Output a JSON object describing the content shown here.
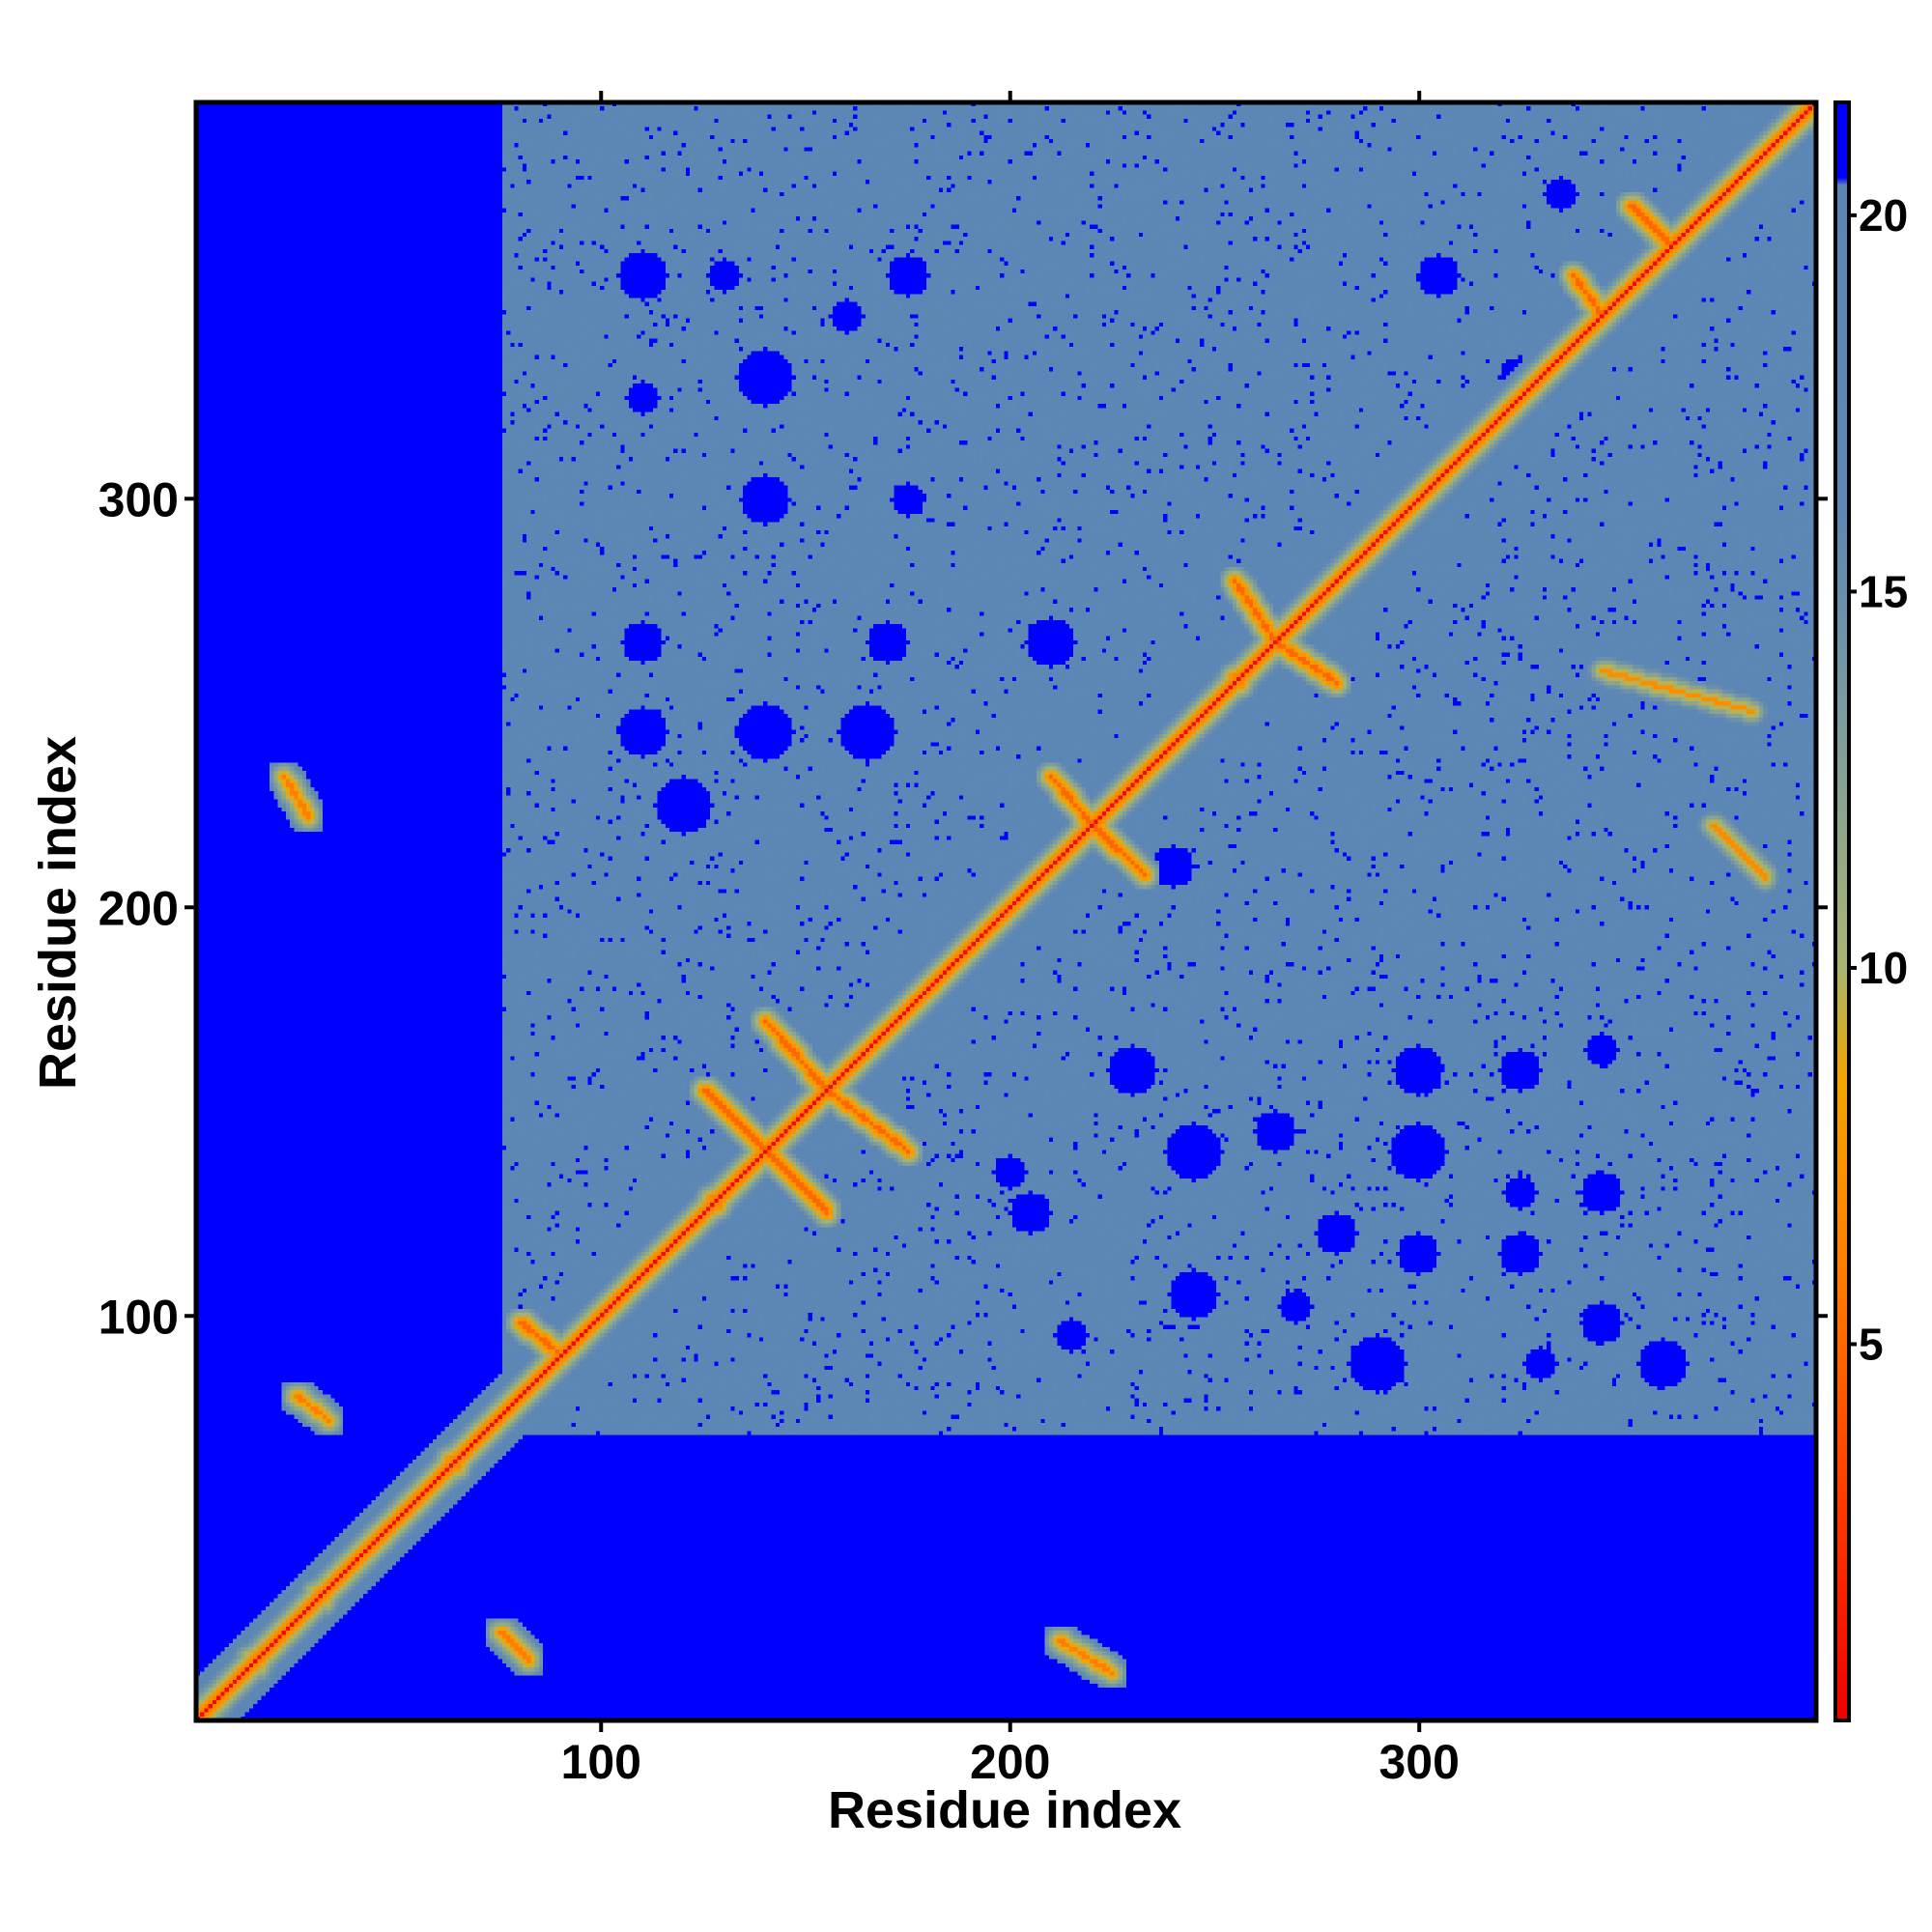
{
  "chart_data": {
    "type": "heatmap",
    "title": "",
    "xlabel": "Residue index",
    "ylabel": "Residue index",
    "n_residues": 397,
    "xlim": [
      1,
      397
    ],
    "ylim": [
      1,
      397
    ],
    "x_ticks": [
      100,
      200,
      300
    ],
    "y_ticks": [
      100,
      200,
      300
    ],
    "colorbar": {
      "range": [
        0,
        21.5
      ],
      "ticks": [
        5,
        10,
        15,
        20
      ],
      "color_stops": [
        {
          "value": 0,
          "color": "#ee0000"
        },
        {
          "value": 3,
          "color": "#ff3c00"
        },
        {
          "value": 6,
          "color": "#ff7e00"
        },
        {
          "value": 8.5,
          "color": "#f2a500"
        },
        {
          "value": 10,
          "color": "#a9b56e"
        },
        {
          "value": 13,
          "color": "#7f9e9c"
        },
        {
          "value": 16,
          "color": "#5e87b4"
        },
        {
          "value": 20.4,
          "color": "#5a86b6"
        },
        {
          "value": 20.5,
          "color": "#0000ff"
        },
        {
          "value": 21.5,
          "color": "#0000ff"
        }
      ]
    },
    "blank_regions": [
      {
        "x": [
          1,
          75
        ],
        "y": [
          1,
          397
        ],
        "value": "far"
      },
      {
        "x": [
          1,
          397
        ],
        "y": [
          1,
          70
        ],
        "value": "far"
      }
    ],
    "contact_segments": [
      {
        "from": [
          1,
          1
        ],
        "to": [
          397,
          397
        ],
        "value": 3.8,
        "kind": "main-diagonal"
      },
      {
        "from": [
          140,
          140
        ],
        "to": [
          125,
          155
        ],
        "value": 5
      },
      {
        "from": [
          140,
          140
        ],
        "to": [
          155,
          125
        ],
        "value": 5
      },
      {
        "from": [
          155,
          155
        ],
        "to": [
          140,
          172
        ],
        "value": 5
      },
      {
        "from": [
          155,
          155
        ],
        "to": [
          175,
          140
        ],
        "value": 5
      },
      {
        "from": [
          220,
          220
        ],
        "to": [
          210,
          232
        ],
        "value": 5
      },
      {
        "from": [
          220,
          220
        ],
        "to": [
          233,
          208
        ],
        "value": 5
      },
      {
        "from": [
          265,
          265
        ],
        "to": [
          255,
          280
        ],
        "value": 5
      },
      {
        "from": [
          265,
          265
        ],
        "to": [
          280,
          255
        ],
        "value": 5
      },
      {
        "from": [
          345,
          345
        ],
        "to": [
          338,
          355
        ],
        "value": 5
      },
      {
        "from": [
          362,
          362
        ],
        "to": [
          352,
          372
        ],
        "value": 5
      },
      {
        "from": [
          90,
          90
        ],
        "to": [
          80,
          98
        ],
        "value": 5
      },
      {
        "from": [
          22,
          232
        ],
        "to": [
          28,
          222
        ],
        "value": 6
      },
      {
        "from": [
          25,
          80
        ],
        "to": [
          33,
          74
        ],
        "value": 6
      },
      {
        "from": [
          75,
          22
        ],
        "to": [
          82,
          15
        ],
        "value": 6
      },
      {
        "from": [
          212,
          20
        ],
        "to": [
          225,
          12
        ],
        "value": 6
      },
      {
        "from": [
          345,
          258
        ],
        "to": [
          382,
          248
        ],
        "value": 7
      },
      {
        "from": [
          372,
          220
        ],
        "to": [
          385,
          207
        ],
        "value": 7
      }
    ],
    "far_spots": [
      [
        110,
        355
      ],
      [
        130,
        355
      ],
      [
        160,
        345
      ],
      [
        175,
        355
      ],
      [
        110,
        325
      ],
      [
        140,
        330
      ],
      [
        140,
        300
      ],
      [
        175,
        300
      ],
      [
        110,
        265
      ],
      [
        170,
        265
      ],
      [
        210,
        265
      ],
      [
        140,
        243
      ],
      [
        110,
        243
      ],
      [
        165,
        243
      ],
      [
        120,
        225
      ],
      [
        240,
        210
      ],
      [
        230,
        160
      ],
      [
        245,
        140
      ],
      [
        300,
        160
      ],
      [
        325,
        160
      ],
      [
        345,
        165
      ],
      [
        300,
        140
      ],
      [
        325,
        130
      ],
      [
        345,
        130
      ],
      [
        280,
        120
      ],
      [
        300,
        115
      ],
      [
        325,
        115
      ],
      [
        345,
        98
      ],
      [
        290,
        88
      ],
      [
        330,
        88
      ],
      [
        360,
        88
      ],
      [
        245,
        105
      ],
      [
        200,
        135
      ],
      [
        270,
        102
      ],
      [
        215,
        95
      ],
      [
        305,
        355
      ],
      [
        325,
        330
      ],
      [
        335,
        375
      ],
      [
        205,
        125
      ],
      [
        265,
        145
      ]
    ]
  }
}
